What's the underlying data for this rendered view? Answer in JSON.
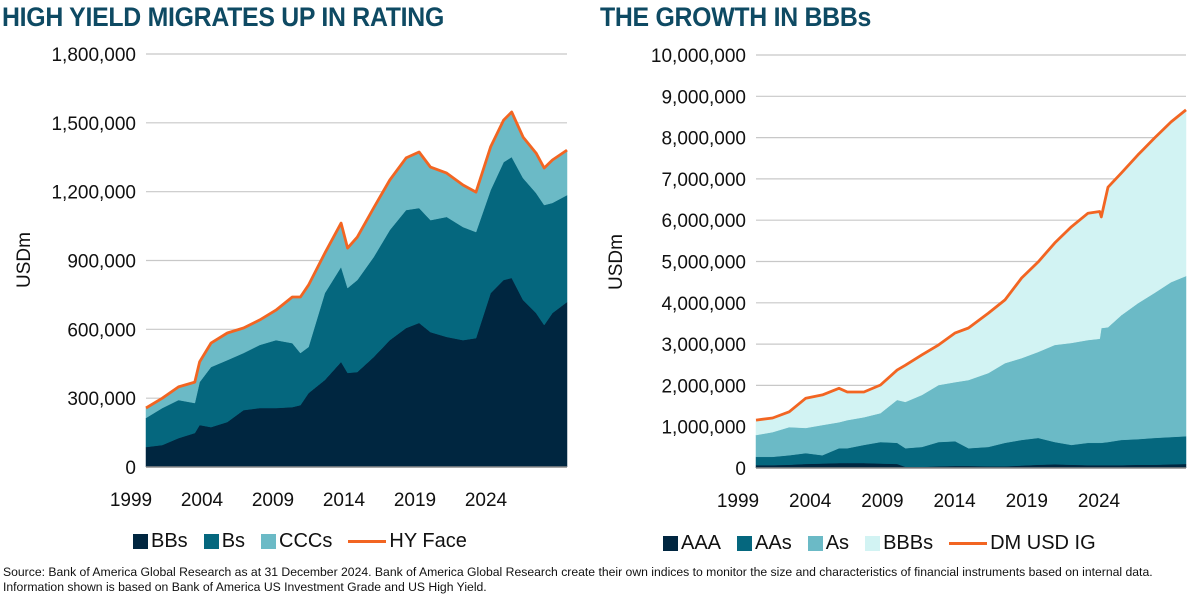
{
  "footer": {
    "source": "Source: Bank of America Global Research as at 31 December 2024. Bank of America Global Research create their own indices to monitor the size and characteristics of financial instruments based on internal data. Information shown is based on Bank of America US Investment Grade and US High Yield."
  },
  "chart_data": [
    {
      "type": "area",
      "stacked": true,
      "title": "HIGH YIELD MIGRATES UP IN RATING",
      "xlabel": "",
      "ylabel": "USDm",
      "ylim": [
        0,
        1800000
      ],
      "yticks": [
        0,
        300000,
        600000,
        900000,
        1200000,
        1500000,
        1800000
      ],
      "ytick_labels": [
        "0",
        "300,000",
        "600,000",
        "900,000",
        "1,200,000",
        "1,500,000",
        "1,800,000"
      ],
      "xtick_labels": [
        "1999",
        "2004",
        "2009",
        "2014",
        "2019",
        "2024"
      ],
      "grid": true,
      "legend": "bottom",
      "x": [
        1999.0,
        2000.0,
        2001.0,
        2002.0,
        2002.3,
        2003.0,
        2004.0,
        2005.0,
        2006.0,
        2007.0,
        2008.0,
        2008.5,
        2009.0,
        2010.0,
        2011.0,
        2011.4,
        2012.0,
        2013.0,
        2014.0,
        2015.0,
        2015.8,
        2016.5,
        2017.5,
        2018.5,
        2019.3,
        2020.2,
        2021.0,
        2021.5,
        2022.2,
        2023.0,
        2023.5,
        2024.0,
        2024.9
      ],
      "series": [
        {
          "name": "BBs",
          "kind": "area",
          "color": "#002640",
          "values": [
            87000,
            96000,
            126000,
            148000,
            183000,
            174000,
            196000,
            248000,
            257000,
            257000,
            261000,
            270000,
            322000,
            379000,
            458000,
            410000,
            414000,
            479000,
            553000,
            606000,
            628000,
            588000,
            567000,
            553000,
            562000,
            758000,
            815000,
            824000,
            728000,
            671000,
            619000,
            671000,
            719000
          ]
        },
        {
          "name": "Bs",
          "kind": "area",
          "color": "#05677e",
          "values": [
            127000,
            161000,
            166000,
            131000,
            187000,
            262000,
            270000,
            249000,
            275000,
            296000,
            279000,
            227000,
            201000,
            379000,
            414000,
            370000,
            401000,
            436000,
            480000,
            514000,
            501000,
            488000,
            523000,
            493000,
            462000,
            449000,
            514000,
            527000,
            531000,
            523000,
            523000,
            480000,
            466000
          ]
        },
        {
          "name": "CCCs",
          "kind": "area",
          "color": "#6bbac6",
          "values": [
            43000,
            43000,
            57000,
            91000,
            88000,
            104000,
            118000,
            109000,
            109000,
            131000,
            201000,
            244000,
            270000,
            174000,
            191000,
            174000,
            187000,
            214000,
            218000,
            227000,
            244000,
            231000,
            191000,
            183000,
            174000,
            188000,
            183000,
            196000,
            179000,
            174000,
            161000,
            187000,
            196000
          ]
        },
        {
          "name": "HY Face",
          "kind": "line",
          "color": "#f26522",
          "values": [
            257000,
            300000,
            349000,
            370000,
            458000,
            540000,
            584000,
            606000,
            641000,
            684000,
            741000,
            741000,
            793000,
            932000,
            1063000,
            954000,
            1002000,
            1129000,
            1251000,
            1347000,
            1373000,
            1307000,
            1281000,
            1229000,
            1198000,
            1395000,
            1512000,
            1547000,
            1438000,
            1368000,
            1303000,
            1338000,
            1381000
          ]
        }
      ]
    },
    {
      "type": "area",
      "stacked": true,
      "title": "THE GROWTH IN BBBs",
      "xlabel": "",
      "ylabel": "USDm",
      "ylim": [
        0,
        10000000
      ],
      "yticks": [
        0,
        1000000,
        2000000,
        3000000,
        4000000,
        5000000,
        6000000,
        7000000,
        8000000,
        9000000,
        10000000
      ],
      "ytick_labels": [
        "0",
        "1,000,000",
        "2,000,000",
        "3,000,000",
        "4,000,000",
        "5,000,000",
        "6,000,000",
        "7,000,000",
        "8,000,000",
        "9,000,000",
        "10,000,000"
      ],
      "xtick_labels": [
        "1999",
        "2004",
        "2009",
        "2014",
        "2019",
        "2024"
      ],
      "grid": true,
      "legend": "bottom",
      "x": [
        1999.0,
        2000.0,
        2001.0,
        2002.0,
        2003.0,
        2004.0,
        2004.5,
        2005.5,
        2006.5,
        2007.5,
        2008.0,
        2009.0,
        2010.0,
        2011.0,
        2011.8,
        2013.0,
        2014.0,
        2015.0,
        2016.0,
        2017.0,
        2018.0,
        2019.0,
        2019.7,
        2019.8,
        2020.2,
        2021.0,
        2022.0,
        2023.0,
        2024.0,
        2024.9
      ],
      "series": [
        {
          "name": "AAA",
          "kind": "area",
          "color": "#002640",
          "values": [
            70000,
            70000,
            80000,
            100000,
            110000,
            120000,
            120000,
            120000,
            110000,
            100000,
            30000,
            30000,
            40000,
            50000,
            50000,
            40000,
            40000,
            60000,
            80000,
            90000,
            80000,
            70000,
            70000,
            70000,
            70000,
            70000,
            80000,
            80000,
            90000,
            100000
          ]
        },
        {
          "name": "AAs",
          "kind": "area",
          "color": "#05677e",
          "values": [
            200000,
            200000,
            230000,
            260000,
            200000,
            360000,
            360000,
            440000,
            520000,
            510000,
            450000,
            480000,
            590000,
            600000,
            430000,
            470000,
            570000,
            620000,
            650000,
            540000,
            480000,
            540000,
            540000,
            540000,
            560000,
            610000,
            620000,
            650000,
            660000,
            670000
          ]
        },
        {
          "name": "As",
          "kind": "area",
          "color": "#6bbac6",
          "values": [
            530000,
            600000,
            680000,
            610000,
            730000,
            630000,
            680000,
            670000,
            700000,
            1040000,
            1120000,
            1260000,
            1380000,
            1430000,
            1650000,
            1790000,
            1930000,
            1980000,
            2080000,
            2350000,
            2470000,
            2490000,
            2520000,
            2780000,
            2780000,
            3020000,
            3290000,
            3510000,
            3750000,
            3880000
          ]
        },
        {
          "name": "BBBs",
          "kind": "area",
          "color": "#d2f3f3",
          "values": [
            360000,
            340000,
            370000,
            720000,
            730000,
            820000,
            680000,
            610000,
            680000,
            720000,
            890000,
            970000,
            970000,
            1190000,
            1260000,
            1450000,
            1530000,
            1940000,
            2180000,
            2470000,
            2810000,
            3070000,
            3080000,
            2690000,
            3390000,
            3440000,
            3590000,
            3750000,
            3880000,
            4020000
          ]
        },
        {
          "name": "DM USD IG",
          "kind": "line",
          "color": "#f26522",
          "values": [
            1160000,
            1210000,
            1360000,
            1690000,
            1770000,
            1930000,
            1840000,
            1840000,
            2010000,
            2370000,
            2490000,
            2740000,
            2980000,
            3270000,
            3390000,
            3750000,
            4070000,
            4600000,
            4990000,
            5450000,
            5840000,
            6170000,
            6210000,
            6080000,
            6800000,
            7140000,
            7580000,
            7990000,
            8380000,
            8670000
          ]
        }
      ]
    }
  ]
}
